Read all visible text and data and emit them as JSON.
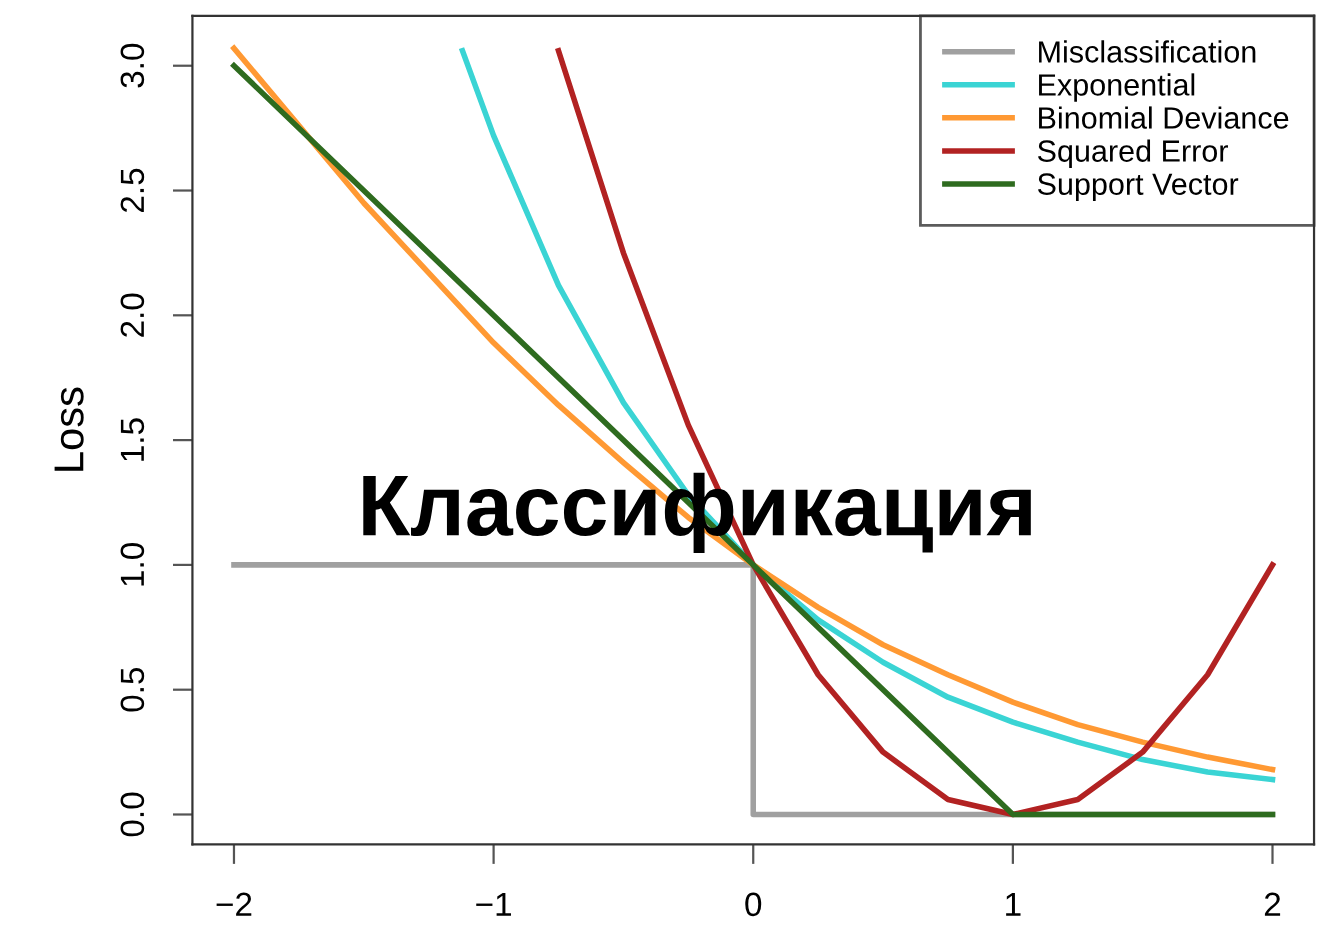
{
  "chart_data": {
    "type": "line",
    "ylabel": "Loss",
    "annotations": [
      "Классификация"
    ],
    "xlim": [
      -2.16,
      2.16
    ],
    "ylim": [
      -0.12,
      3.2
    ],
    "xticks": [
      {
        "value": -2,
        "label": "−2"
      },
      {
        "value": -1,
        "label": "−1"
      },
      0,
      1,
      2
    ],
    "yticks": [
      {
        "value": 0,
        "label": "0.0"
      },
      {
        "value": 0.5,
        "label": "0.5"
      },
      {
        "value": 1,
        "label": "1.0"
      },
      {
        "value": 1.5,
        "label": "1.5"
      },
      {
        "value": 2,
        "label": "2.0"
      },
      {
        "value": 2.5,
        "label": "2.5"
      },
      {
        "value": 3,
        "label": "3.0"
      }
    ],
    "grid": false,
    "legend": "top right",
    "marker": "none",
    "line_style": "solid",
    "series": [
      {
        "name": "Misclassification",
        "color": "#a0a0a0",
        "x": [
          -2,
          0,
          0,
          2
        ],
        "values": [
          1,
          1,
          0,
          0
        ]
      },
      {
        "name": "Exponential",
        "color": "#3ad4d4",
        "x": [
          -1.12,
          -1,
          -0.75,
          -0.5,
          -0.25,
          0,
          0.25,
          0.5,
          0.75,
          1,
          1.25,
          1.5,
          1.75,
          2
        ],
        "values": [
          3.06,
          2.72,
          2.12,
          1.65,
          1.28,
          1,
          0.78,
          0.61,
          0.47,
          0.37,
          0.29,
          0.22,
          0.17,
          0.14
        ]
      },
      {
        "name": "Binomial Deviance",
        "color": "#ff9933",
        "x": [
          -2,
          -1.75,
          -1.5,
          -1.25,
          -1,
          -0.75,
          -0.5,
          -0.25,
          0,
          0.25,
          0.5,
          0.75,
          1,
          1.25,
          1.5,
          1.75,
          2
        ],
        "values": [
          3.07,
          2.76,
          2.45,
          2.17,
          1.89,
          1.64,
          1.41,
          1.19,
          1,
          0.83,
          0.68,
          0.56,
          0.45,
          0.36,
          0.29,
          0.23,
          0.18
        ]
      },
      {
        "name": "Squared Error",
        "color": "#b22222",
        "x": [
          -0.75,
          -0.5,
          -0.25,
          0,
          0.25,
          0.5,
          0.75,
          1,
          1.25,
          1.5,
          1.75,
          2
        ],
        "values": [
          3.06,
          2.25,
          1.56,
          1,
          0.56,
          0.25,
          0.06,
          0,
          0.06,
          0.25,
          0.56,
          1
        ]
      },
      {
        "name": "Support Vector",
        "color": "#2e6b1f",
        "x": [
          -2,
          1,
          2
        ],
        "values": [
          3,
          0,
          0
        ]
      }
    ]
  }
}
